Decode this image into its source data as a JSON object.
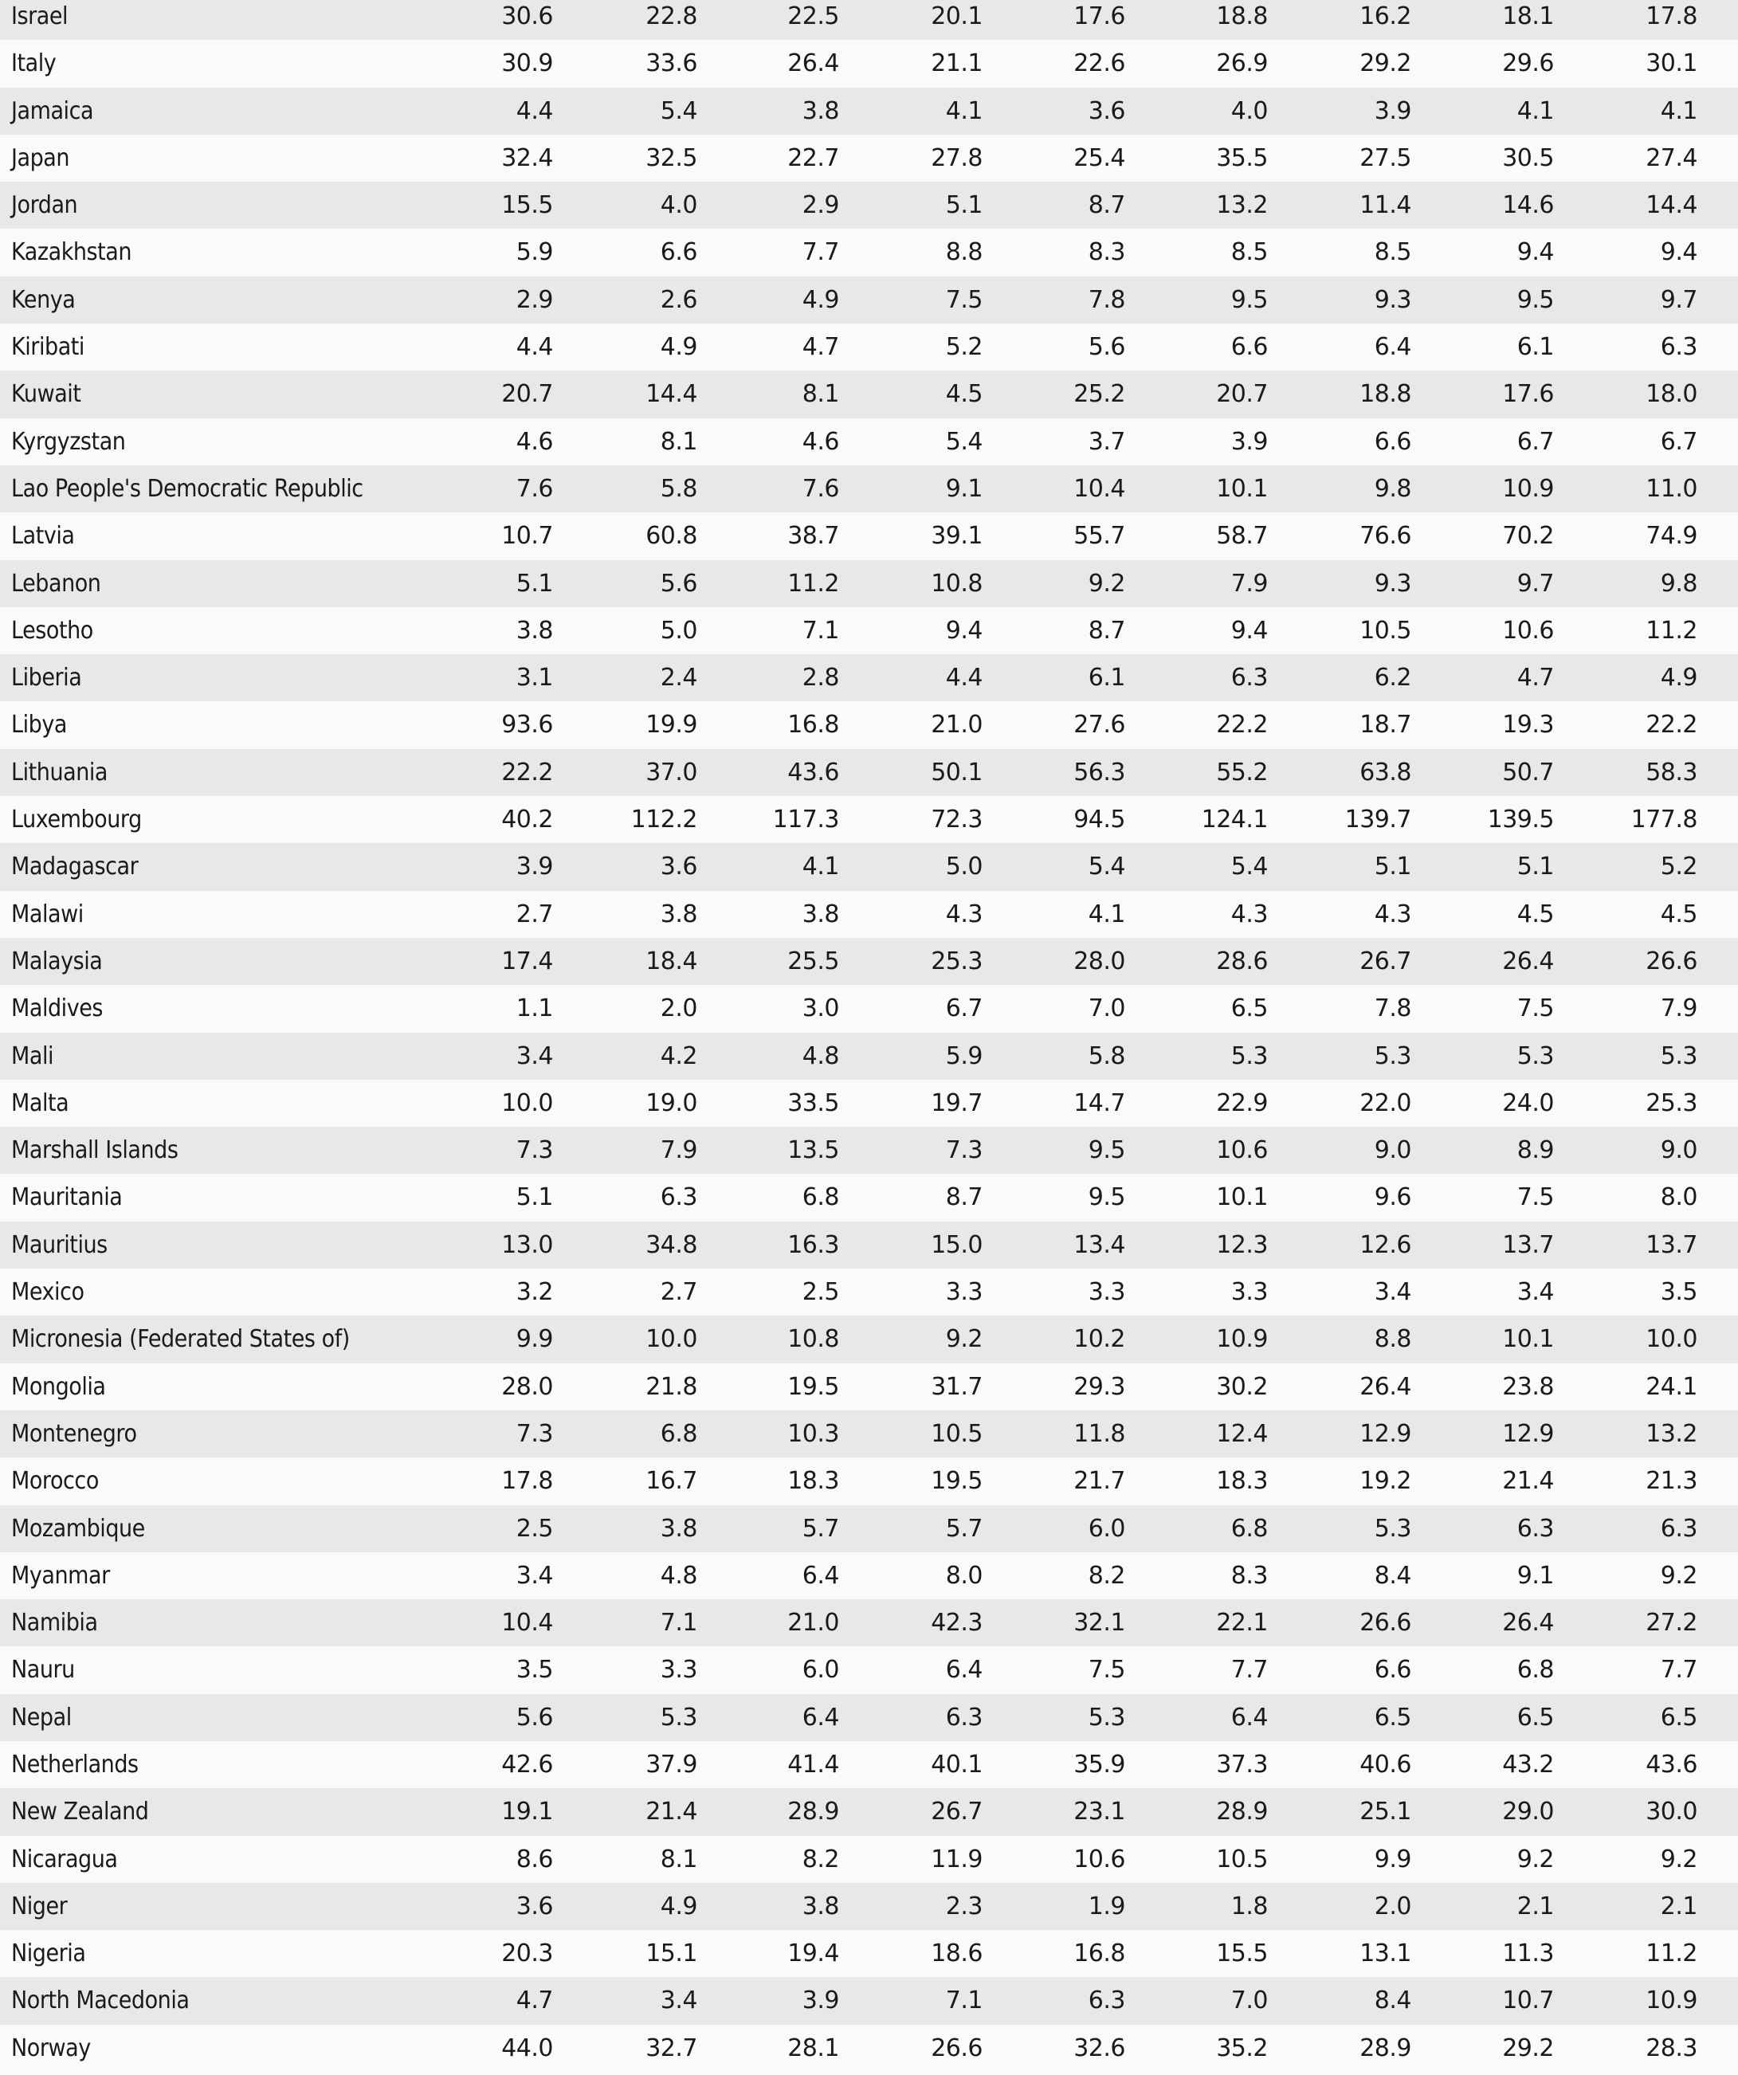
{
  "table": {
    "rows": [
      {
        "country": "Israel",
        "values": [
          "30.6",
          "22.8",
          "22.5",
          "20.1",
          "17.6",
          "18.8",
          "16.2",
          "18.1",
          "17.8"
        ]
      },
      {
        "country": "Italy",
        "values": [
          "30.9",
          "33.6",
          "26.4",
          "21.1",
          "22.6",
          "26.9",
          "29.2",
          "29.6",
          "30.1"
        ]
      },
      {
        "country": "Jamaica",
        "values": [
          "4.4",
          "5.4",
          "3.8",
          "4.1",
          "3.6",
          "4.0",
          "3.9",
          "4.1",
          "4.1"
        ]
      },
      {
        "country": "Japan",
        "values": [
          "32.4",
          "32.5",
          "22.7",
          "27.8",
          "25.4",
          "35.5",
          "27.5",
          "30.5",
          "27.4"
        ]
      },
      {
        "country": "Jordan",
        "values": [
          "15.5",
          "4.0",
          "2.9",
          "5.1",
          "8.7",
          "13.2",
          "11.4",
          "14.6",
          "14.4"
        ]
      },
      {
        "country": "Kazakhstan",
        "values": [
          "5.9",
          "6.6",
          "7.7",
          "8.8",
          "8.3",
          "8.5",
          "8.5",
          "9.4",
          "9.4"
        ]
      },
      {
        "country": "Kenya",
        "values": [
          "2.9",
          "2.6",
          "4.9",
          "7.5",
          "7.8",
          "9.5",
          "9.3",
          "9.5",
          "9.7"
        ]
      },
      {
        "country": "Kiribati",
        "values": [
          "4.4",
          "4.9",
          "4.7",
          "5.2",
          "5.6",
          "6.6",
          "6.4",
          "6.1",
          "6.3"
        ]
      },
      {
        "country": "Kuwait",
        "values": [
          "20.7",
          "14.4",
          "8.1",
          "4.5",
          "25.2",
          "20.7",
          "18.8",
          "17.6",
          "18.0"
        ]
      },
      {
        "country": "Kyrgyzstan",
        "values": [
          "4.6",
          "8.1",
          "4.6",
          "5.4",
          "3.7",
          "3.9",
          "6.6",
          "6.7",
          "6.7"
        ]
      },
      {
        "country": "Lao People's Democratic Republic",
        "values": [
          "7.6",
          "5.8",
          "7.6",
          "9.1",
          "10.4",
          "10.1",
          "9.8",
          "10.9",
          "11.0"
        ]
      },
      {
        "country": "Latvia",
        "values": [
          "10.7",
          "60.8",
          "38.7",
          "39.1",
          "55.7",
          "58.7",
          "76.6",
          "70.2",
          "74.9"
        ]
      },
      {
        "country": "Lebanon",
        "values": [
          "5.1",
          "5.6",
          "11.2",
          "10.8",
          "9.2",
          "7.9",
          "9.3",
          "9.7",
          "9.8"
        ]
      },
      {
        "country": "Lesotho",
        "values": [
          "3.8",
          "5.0",
          "7.1",
          "9.4",
          "8.7",
          "9.4",
          "10.5",
          "10.6",
          "11.2"
        ]
      },
      {
        "country": "Liberia",
        "values": [
          "3.1",
          "2.4",
          "2.8",
          "4.4",
          "6.1",
          "6.3",
          "6.2",
          "4.7",
          "4.9"
        ]
      },
      {
        "country": "Libya",
        "values": [
          "93.6",
          "19.9",
          "16.8",
          "21.0",
          "27.6",
          "22.2",
          "18.7",
          "19.3",
          "22.2"
        ]
      },
      {
        "country": "Lithuania",
        "values": [
          "22.2",
          "37.0",
          "43.6",
          "50.1",
          "56.3",
          "55.2",
          "63.8",
          "50.7",
          "58.3"
        ]
      },
      {
        "country": "Luxembourg",
        "values": [
          "40.2",
          "112.2",
          "117.3",
          "72.3",
          "94.5",
          "124.1",
          "139.7",
          "139.5",
          "177.8"
        ]
      },
      {
        "country": "Madagascar",
        "values": [
          "3.9",
          "3.6",
          "4.1",
          "5.0",
          "5.4",
          "5.4",
          "5.1",
          "5.1",
          "5.2"
        ]
      },
      {
        "country": "Malawi",
        "values": [
          "2.7",
          "3.8",
          "3.8",
          "4.3",
          "4.1",
          "4.3",
          "4.3",
          "4.5",
          "4.5"
        ]
      },
      {
        "country": "Malaysia",
        "values": [
          "17.4",
          "18.4",
          "25.5",
          "25.3",
          "28.0",
          "28.6",
          "26.7",
          "26.4",
          "26.6"
        ]
      },
      {
        "country": "Maldives",
        "values": [
          "1.1",
          "2.0",
          "3.0",
          "6.7",
          "7.0",
          "6.5",
          "7.8",
          "7.5",
          "7.9"
        ]
      },
      {
        "country": "Mali",
        "values": [
          "3.4",
          "4.2",
          "4.8",
          "5.9",
          "5.8",
          "5.3",
          "5.3",
          "5.3",
          "5.3"
        ]
      },
      {
        "country": "Malta",
        "values": [
          "10.0",
          "19.0",
          "33.5",
          "19.7",
          "14.7",
          "22.9",
          "22.0",
          "24.0",
          "25.3"
        ]
      },
      {
        "country": "Marshall Islands",
        "values": [
          "7.3",
          "7.9",
          "13.5",
          "7.3",
          "9.5",
          "10.6",
          "9.0",
          "8.9",
          "9.0"
        ]
      },
      {
        "country": "Mauritania",
        "values": [
          "5.1",
          "6.3",
          "6.8",
          "8.7",
          "9.5",
          "10.1",
          "9.6",
          "7.5",
          "8.0"
        ]
      },
      {
        "country": "Mauritius",
        "values": [
          "13.0",
          "34.8",
          "16.3",
          "15.0",
          "13.4",
          "12.3",
          "12.6",
          "13.7",
          "13.7"
        ]
      },
      {
        "country": "Mexico",
        "values": [
          "3.2",
          "2.7",
          "2.5",
          "3.3",
          "3.3",
          "3.3",
          "3.4",
          "3.4",
          "3.5"
        ]
      },
      {
        "country": "Micronesia (Federated States of)",
        "values": [
          "9.9",
          "10.0",
          "10.8",
          "9.2",
          "10.2",
          "10.9",
          "8.8",
          "10.1",
          "10.0"
        ]
      },
      {
        "country": "Mongolia",
        "values": [
          "28.0",
          "21.8",
          "19.5",
          "31.7",
          "29.3",
          "30.2",
          "26.4",
          "23.8",
          "24.1"
        ]
      },
      {
        "country": "Montenegro",
        "values": [
          "7.3",
          "6.8",
          "10.3",
          "10.5",
          "11.8",
          "12.4",
          "12.9",
          "12.9",
          "13.2"
        ]
      },
      {
        "country": "Morocco",
        "values": [
          "17.8",
          "16.7",
          "18.3",
          "19.5",
          "21.7",
          "18.3",
          "19.2",
          "21.4",
          "21.3"
        ]
      },
      {
        "country": "Mozambique",
        "values": [
          "2.5",
          "3.8",
          "5.7",
          "5.7",
          "6.0",
          "6.8",
          "5.3",
          "6.3",
          "6.3"
        ]
      },
      {
        "country": "Myanmar",
        "values": [
          "3.4",
          "4.8",
          "6.4",
          "8.0",
          "8.2",
          "8.3",
          "8.4",
          "9.1",
          "9.2"
        ]
      },
      {
        "country": "Namibia",
        "values": [
          "10.4",
          "7.1",
          "21.0",
          "42.3",
          "32.1",
          "22.1",
          "26.6",
          "26.4",
          "27.2"
        ]
      },
      {
        "country": "Nauru",
        "values": [
          "3.5",
          "3.3",
          "6.0",
          "6.4",
          "7.5",
          "7.7",
          "6.6",
          "6.8",
          "7.7"
        ]
      },
      {
        "country": "Nepal",
        "values": [
          "5.6",
          "5.3",
          "6.4",
          "6.3",
          "5.3",
          "6.4",
          "6.5",
          "6.5",
          "6.5"
        ]
      },
      {
        "country": "Netherlands",
        "values": [
          "42.6",
          "37.9",
          "41.4",
          "40.1",
          "35.9",
          "37.3",
          "40.6",
          "43.2",
          "43.6"
        ]
      },
      {
        "country": "New Zealand",
        "values": [
          "19.1",
          "21.4",
          "28.9",
          "26.7",
          "23.1",
          "28.9",
          "25.1",
          "29.0",
          "30.0"
        ]
      },
      {
        "country": "Nicaragua",
        "values": [
          "8.6",
          "8.1",
          "8.2",
          "11.9",
          "10.6",
          "10.5",
          "9.9",
          "9.2",
          "9.2"
        ]
      },
      {
        "country": "Niger",
        "values": [
          "3.6",
          "4.9",
          "3.8",
          "2.3",
          "1.9",
          "1.8",
          "2.0",
          "2.1",
          "2.1"
        ]
      },
      {
        "country": "Nigeria",
        "values": [
          "20.3",
          "15.1",
          "19.4",
          "18.6",
          "16.8",
          "15.5",
          "13.1",
          "11.3",
          "11.2"
        ]
      },
      {
        "country": "North Macedonia",
        "values": [
          "4.7",
          "3.4",
          "3.9",
          "7.1",
          "6.3",
          "7.0",
          "8.4",
          "10.7",
          "10.9"
        ]
      },
      {
        "country": "Norway",
        "values": [
          "44.0",
          "32.7",
          "28.1",
          "26.6",
          "32.6",
          "35.2",
          "28.9",
          "29.2",
          "28.3"
        ]
      }
    ]
  },
  "colors": {
    "row_even": "#e8e8e8",
    "row_odd": "#fafafa",
    "text": "#1a1a1a"
  }
}
